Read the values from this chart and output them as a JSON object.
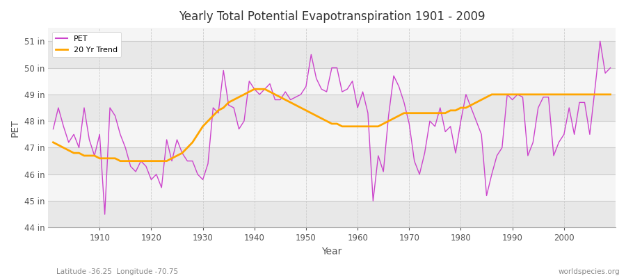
{
  "title": "Yearly Total Potential Evapotranspiration 1901 - 2009",
  "xlabel": "Year",
  "ylabel": "PET",
  "pet_color": "#CC44CC",
  "trend_color": "#FFA500",
  "background_color": "#FFFFFF",
  "plot_bg_color": "#F0F0F0",
  "band_color_light": "#F5F5F5",
  "band_color_dark": "#E8E8E8",
  "grid_color": "#CCCCCC",
  "ylim": [
    44,
    51.5
  ],
  "yticks": [
    44,
    45,
    46,
    47,
    48,
    49,
    50,
    51
  ],
  "ytick_labels": [
    "44 in",
    "45 in",
    "46 in",
    "47 in",
    "48 in",
    "49 in",
    "50 in",
    "51 in"
  ],
  "years": [
    1901,
    1902,
    1903,
    1904,
    1905,
    1906,
    1907,
    1908,
    1909,
    1910,
    1911,
    1912,
    1913,
    1914,
    1915,
    1916,
    1917,
    1918,
    1919,
    1920,
    1921,
    1922,
    1923,
    1924,
    1925,
    1926,
    1927,
    1928,
    1929,
    1930,
    1931,
    1932,
    1933,
    1934,
    1935,
    1936,
    1937,
    1938,
    1939,
    1940,
    1941,
    1942,
    1943,
    1944,
    1945,
    1946,
    1947,
    1948,
    1949,
    1950,
    1951,
    1952,
    1953,
    1954,
    1955,
    1956,
    1957,
    1958,
    1959,
    1960,
    1961,
    1962,
    1963,
    1964,
    1965,
    1966,
    1967,
    1968,
    1969,
    1970,
    1971,
    1972,
    1973,
    1974,
    1975,
    1976,
    1977,
    1978,
    1979,
    1980,
    1981,
    1982,
    1983,
    1984,
    1985,
    1986,
    1987,
    1988,
    1989,
    1990,
    1991,
    1992,
    1993,
    1994,
    1995,
    1996,
    1997,
    1998,
    1999,
    2000,
    2001,
    2002,
    2003,
    2004,
    2005,
    2006,
    2007,
    2008,
    2009
  ],
  "pet_values": [
    47.7,
    48.5,
    47.8,
    47.2,
    47.5,
    47.0,
    48.5,
    47.3,
    46.7,
    47.5,
    44.5,
    48.5,
    48.2,
    47.5,
    47.0,
    46.3,
    46.1,
    46.5,
    46.3,
    45.8,
    46.0,
    45.5,
    47.3,
    46.5,
    47.3,
    46.8,
    46.5,
    46.5,
    46.0,
    45.8,
    46.4,
    48.5,
    48.3,
    49.9,
    48.6,
    48.5,
    47.7,
    48.0,
    49.5,
    49.2,
    49.0,
    49.2,
    49.4,
    48.8,
    48.8,
    49.1,
    48.8,
    48.9,
    49.0,
    49.3,
    50.5,
    49.6,
    49.2,
    49.1,
    50.0,
    50.0,
    49.1,
    49.2,
    49.5,
    48.5,
    49.1,
    48.3,
    45.0,
    46.7,
    46.1,
    48.2,
    49.7,
    49.3,
    48.7,
    47.9,
    46.5,
    46.0,
    46.8,
    48.0,
    47.8,
    48.5,
    47.6,
    47.8,
    46.8,
    48.0,
    49.0,
    48.5,
    48.0,
    47.5,
    45.2,
    46.0,
    46.7,
    47.0,
    49.0,
    48.8,
    49.0,
    48.9,
    46.7,
    47.2,
    48.5,
    48.9,
    48.9,
    46.7,
    47.2,
    47.5,
    48.5,
    47.5,
    48.7,
    48.7,
    47.5,
    49.2,
    51.0,
    49.8,
    50.0
  ],
  "trend_years": [
    1901,
    1902,
    1903,
    1904,
    1905,
    1906,
    1907,
    1908,
    1909,
    1910,
    1911,
    1912,
    1913,
    1914,
    1915,
    1916,
    1917,
    1918,
    1919,
    1920,
    1921,
    1922,
    1923,
    1924,
    1925,
    1926,
    1927,
    1928,
    1929,
    1930,
    1931,
    1932,
    1933,
    1934,
    1935,
    1936,
    1937,
    1938,
    1939,
    1940,
    1941,
    1942,
    1943,
    1944,
    1945,
    1946,
    1947,
    1948,
    1949,
    1950,
    1951,
    1952,
    1953,
    1954,
    1955,
    1956,
    1957,
    1958,
    1959,
    1960,
    1961,
    1962,
    1963,
    1964,
    1965,
    1966,
    1967,
    1968,
    1969,
    1970,
    1971,
    1972,
    1973,
    1974,
    1975,
    1976,
    1977,
    1978,
    1979,
    1980,
    1981,
    1982,
    1983,
    1984,
    1985,
    1986,
    1987,
    1988,
    1989,
    1990,
    1991,
    1992,
    1993,
    1994,
    1995,
    1996,
    1997,
    1998,
    1999,
    2000,
    2001,
    2002,
    2003,
    2004,
    2005,
    2006,
    2007,
    2008,
    2009
  ],
  "trend_values": [
    47.2,
    47.1,
    47.0,
    46.9,
    46.8,
    46.8,
    46.7,
    46.7,
    46.7,
    46.6,
    46.6,
    46.6,
    46.6,
    46.5,
    46.5,
    46.5,
    46.5,
    46.5,
    46.5,
    46.5,
    46.5,
    46.5,
    46.5,
    46.6,
    46.7,
    46.8,
    47.0,
    47.2,
    47.5,
    47.8,
    48.0,
    48.2,
    48.4,
    48.5,
    48.7,
    48.8,
    48.9,
    49.0,
    49.1,
    49.2,
    49.2,
    49.2,
    49.1,
    49.0,
    48.9,
    48.8,
    48.7,
    48.6,
    48.5,
    48.4,
    48.3,
    48.2,
    48.1,
    48.0,
    47.9,
    47.9,
    47.8,
    47.8,
    47.8,
    47.8,
    47.8,
    47.8,
    47.8,
    47.8,
    47.9,
    48.0,
    48.1,
    48.2,
    48.3,
    48.3,
    48.3,
    48.3,
    48.3,
    48.3,
    48.3,
    48.3,
    48.3,
    48.4,
    48.4,
    48.5,
    48.5,
    48.6,
    48.7,
    48.8,
    48.9,
    49.0,
    49.0,
    49.0,
    49.0,
    49.0,
    49.0,
    49.0,
    49.0,
    49.0,
    49.0,
    49.0,
    49.0,
    49.0,
    49.0,
    49.0,
    49.0,
    49.0,
    49.0,
    49.0,
    49.0,
    49.0,
    49.0,
    49.0,
    49.0
  ],
  "legend_pet_label": "PET",
  "legend_trend_label": "20 Yr Trend",
  "footnote_left": "Latitude -36.25  Longitude -70.75",
  "footnote_right": "worldspecies.org"
}
